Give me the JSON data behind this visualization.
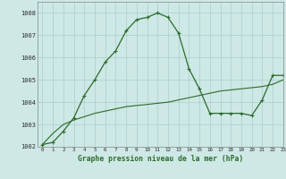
{
  "x": [
    0,
    1,
    2,
    3,
    4,
    5,
    6,
    7,
    8,
    9,
    10,
    11,
    12,
    13,
    14,
    15,
    16,
    17,
    18,
    19,
    20,
    21,
    22,
    23
  ],
  "line1": [
    1002.1,
    1002.2,
    1002.7,
    1003.3,
    1004.3,
    1005.0,
    1005.8,
    1006.3,
    1007.2,
    1007.7,
    1007.8,
    1008.0,
    1007.8,
    1007.1,
    1005.5,
    1004.6,
    1003.5,
    1003.5,
    1003.5,
    1003.5,
    1003.4,
    1004.1,
    1005.2,
    1005.2
  ],
  "line2": [
    1002.1,
    1002.6,
    1003.0,
    1003.2,
    1003.35,
    1003.5,
    1003.6,
    1003.7,
    1003.8,
    1003.85,
    1003.9,
    1003.95,
    1004.0,
    1004.1,
    1004.2,
    1004.3,
    1004.4,
    1004.5,
    1004.55,
    1004.6,
    1004.65,
    1004.7,
    1004.8,
    1005.0
  ],
  "background_color": "#cde8e5",
  "grid_color": "#aacfcc",
  "line_color": "#2d6a2d",
  "xlabel": "Graphe pression niveau de la mer (hPa)",
  "ylim": [
    1002,
    1008.5
  ],
  "xlim": [
    -0.5,
    23
  ],
  "yticks": [
    1002,
    1003,
    1004,
    1005,
    1006,
    1007,
    1008
  ],
  "xticks": [
    0,
    1,
    2,
    3,
    4,
    5,
    6,
    7,
    8,
    9,
    10,
    11,
    12,
    13,
    14,
    15,
    16,
    17,
    18,
    19,
    20,
    21,
    22,
    23
  ]
}
